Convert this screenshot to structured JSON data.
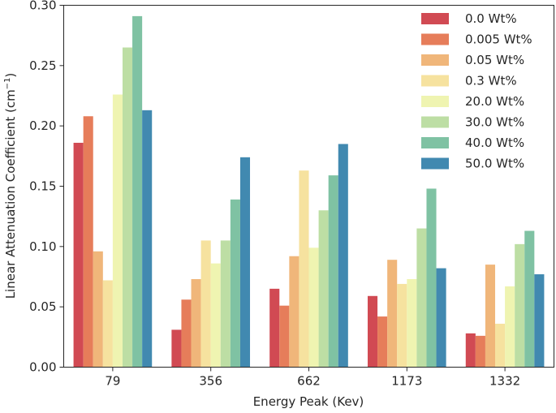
{
  "chart_data": {
    "type": "bar",
    "xlabel": "Energy Peak (Kev)",
    "ylabel": "Linear Attenuation Coefficient (cm",
    "ylabel_sup": "−1",
    "ylabel_close": ")",
    "ylim": [
      0,
      0.3
    ],
    "yticks": [
      "0.00",
      "0.05",
      "0.10",
      "0.15",
      "0.20",
      "0.25",
      "0.30"
    ],
    "categories": [
      "79",
      "356",
      "662",
      "1173",
      "1332"
    ],
    "legend_position": "top-right",
    "series": [
      {
        "name": "0.0 Wt%",
        "color": "#d14a53",
        "values": [
          0.186,
          0.031,
          0.065,
          0.059,
          0.028
        ]
      },
      {
        "name": "0.005 Wt%",
        "color": "#e67d5a",
        "values": [
          0.208,
          0.056,
          0.051,
          0.042,
          0.026
        ]
      },
      {
        "name": "0.05 Wt%",
        "color": "#f0b67a",
        "values": [
          0.096,
          0.073,
          0.092,
          0.089,
          0.085
        ]
      },
      {
        "name": "0.3 Wt%",
        "color": "#f6e29f",
        "values": [
          0.072,
          0.105,
          0.163,
          0.069,
          0.036
        ]
      },
      {
        "name": "20.0 Wt%",
        "color": "#eff4b1",
        "values": [
          0.226,
          0.086,
          0.099,
          0.073,
          0.067
        ]
      },
      {
        "name": "30.0 Wt%",
        "color": "#bddea4",
        "values": [
          0.265,
          0.105,
          0.13,
          0.115,
          0.102
        ]
      },
      {
        "name": "40.0 Wt%",
        "color": "#7fc2a3",
        "values": [
          0.291,
          0.139,
          0.159,
          0.148,
          0.113
        ]
      },
      {
        "name": "50.0 Wt%",
        "color": "#4189b0",
        "values": [
          0.213,
          0.174,
          0.185,
          0.082,
          0.077
        ]
      }
    ]
  }
}
